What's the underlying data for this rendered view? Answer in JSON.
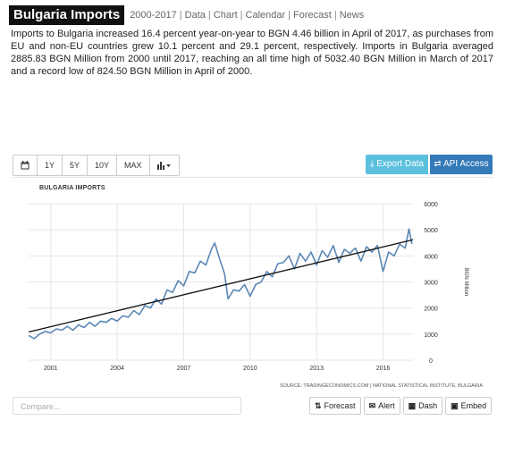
{
  "header": {
    "title": "Bulgaria Imports",
    "links": [
      "2000-2017",
      "Data",
      "Chart",
      "Calendar",
      "Forecast",
      "News"
    ]
  },
  "description": "Imports to Bulgaria increased 16.4 percent year-on-year to BGN 4.46 billion in April of 2017, as purchases from EU and non-EU countries grew 10.1 percent and 29.1 percent, respectively. Imports in Bulgaria averaged 2885.83 BGN Million from 2000 until 2017, reaching an all time high of 5032.40 BGN Million in March of 2017 and a record low of 824.50 BGN Million in April of 2000.",
  "toolbar": {
    "ranges": [
      "1Y",
      "5Y",
      "10Y",
      "MAX"
    ],
    "export_label": "Export Data",
    "api_label": "API Access"
  },
  "footer": {
    "compare_placeholder": "Compare...",
    "forecast_label": "Forecast",
    "alert_label": "Alert",
    "dash_label": "Dash",
    "embed_label": "Embed"
  },
  "chart_data": {
    "type": "line",
    "title": "BULGARIA IMPORTS",
    "ylabel": "BGN Million",
    "source": "SOURCE: TRADINGECONOMICS.COM | NATIONAL STATISTICAL INSTITUTE, BULGARIA",
    "x_ticks": [
      2001,
      2004,
      2007,
      2010,
      2013,
      2016
    ],
    "y_ticks": [
      0,
      1000,
      2000,
      3000,
      4000,
      5000,
      6000
    ],
    "xlim": [
      2000.0,
      2017.35
    ],
    "ylim": [
      0,
      6000
    ],
    "grid": true,
    "series": [
      {
        "values": [
          [
            2000.0,
            950
          ],
          [
            2000.25,
            824.5
          ],
          [
            2000.5,
            1000
          ],
          [
            2000.75,
            1100
          ],
          [
            2001.0,
            1050
          ],
          [
            2001.25,
            1200
          ],
          [
            2001.5,
            1150
          ],
          [
            2001.75,
            1300
          ],
          [
            2002.0,
            1150
          ],
          [
            2002.25,
            1350
          ],
          [
            2002.5,
            1250
          ],
          [
            2002.75,
            1450
          ],
          [
            2003.0,
            1300
          ],
          [
            2003.25,
            1500
          ],
          [
            2003.5,
            1450
          ],
          [
            2003.75,
            1600
          ],
          [
            2004.0,
            1500
          ],
          [
            2004.25,
            1700
          ],
          [
            2004.5,
            1650
          ],
          [
            2004.75,
            1900
          ],
          [
            2005.0,
            1750
          ],
          [
            2005.25,
            2100
          ],
          [
            2005.5,
            2000
          ],
          [
            2005.75,
            2350
          ],
          [
            2006.0,
            2150
          ],
          [
            2006.25,
            2700
          ],
          [
            2006.5,
            2600
          ],
          [
            2006.75,
            3050
          ],
          [
            2007.0,
            2850
          ],
          [
            2007.25,
            3400
          ],
          [
            2007.5,
            3350
          ],
          [
            2007.75,
            3800
          ],
          [
            2008.0,
            3650
          ],
          [
            2008.25,
            4250
          ],
          [
            2008.4,
            4500
          ],
          [
            2008.6,
            3950
          ],
          [
            2008.85,
            3300
          ],
          [
            2009.0,
            2350
          ],
          [
            2009.25,
            2700
          ],
          [
            2009.5,
            2650
          ],
          [
            2009.75,
            2900
          ],
          [
            2010.0,
            2450
          ],
          [
            2010.25,
            2900
          ],
          [
            2010.5,
            3000
          ],
          [
            2010.75,
            3400
          ],
          [
            2011.0,
            3200
          ],
          [
            2011.25,
            3700
          ],
          [
            2011.5,
            3750
          ],
          [
            2011.75,
            4000
          ],
          [
            2012.0,
            3500
          ],
          [
            2012.25,
            4100
          ],
          [
            2012.5,
            3800
          ],
          [
            2012.75,
            4150
          ],
          [
            2013.0,
            3650
          ],
          [
            2013.25,
            4200
          ],
          [
            2013.5,
            3950
          ],
          [
            2013.75,
            4400
          ],
          [
            2014.0,
            3750
          ],
          [
            2014.25,
            4250
          ],
          [
            2014.5,
            4100
          ],
          [
            2014.75,
            4300
          ],
          [
            2015.0,
            3800
          ],
          [
            2015.25,
            4350
          ],
          [
            2015.5,
            4150
          ],
          [
            2015.75,
            4400
          ],
          [
            2016.0,
            3400
          ],
          [
            2016.25,
            4150
          ],
          [
            2016.5,
            4000
          ],
          [
            2016.75,
            4450
          ],
          [
            2017.0,
            4300
          ],
          [
            2017.17,
            5032.4
          ],
          [
            2017.3,
            4460
          ]
        ]
      }
    ],
    "trendline": [
      [
        2000.0,
        1080
      ],
      [
        2017.35,
        4620
      ]
    ]
  }
}
